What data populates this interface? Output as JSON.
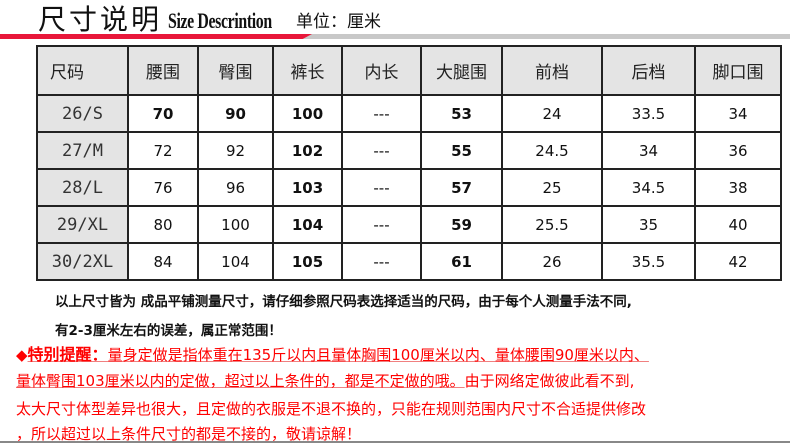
{
  "header": {
    "title_cn": "尺寸说明",
    "title_en": "Size Descrintion",
    "unit": "单位：厘米"
  },
  "colors": {
    "accent": "#e8173a",
    "warning": "#ff0000",
    "header_bg": "#e4e4e4"
  },
  "table": {
    "headers": [
      "尺码",
      "腰围",
      "臀围",
      "裤长",
      "内长",
      "大腿围",
      "前档",
      "后档",
      "脚口围"
    ],
    "rows": [
      [
        "26/S",
        "70",
        "90",
        "100",
        "---",
        "53",
        "24",
        "33.5",
        "34"
      ],
      [
        "27/M",
        "72",
        "92",
        "102",
        "---",
        "55",
        "24.5",
        "34",
        "36"
      ],
      [
        "28/L",
        "76",
        "96",
        "103",
        "---",
        "57",
        "25",
        "34.5",
        "38"
      ],
      [
        "29/XL",
        "80",
        "100",
        "104",
        "---",
        "59",
        "25.5",
        "35",
        "40"
      ],
      [
        "30/2XL",
        "84",
        "104",
        "105",
        "---",
        "61",
        "26",
        "35.5",
        "42"
      ]
    ]
  },
  "notes": {
    "line1": "以上尺寸皆为 成品平铺测量尺寸，请仔细参照尺码表选择适当的尺码，由于每个人测量手法不同,",
    "line2": "有2-3厘米左右的误差，属正常范围！"
  },
  "reminder": {
    "icon": "diamond-icon",
    "icon_glyph": "◆",
    "label": "特别提醒：",
    "line1": "量身定做是指体重在135斤以内且量体胸围100厘米以内、量体腰围90厘米以内、",
    "line2a": "量体臀围103厘米以内的定做，超过以上条件的，都是不定做的哦。",
    "line2b": "由于网络定做彼此看不到,",
    "line3": "太大尺寸体型差异也很大，且定做的衣服是不退不换的，只能在规则范围内尺寸不合适提供修改",
    "line4": "，所以超过以上条件尺寸的都是不接的，敬请谅解！"
  }
}
